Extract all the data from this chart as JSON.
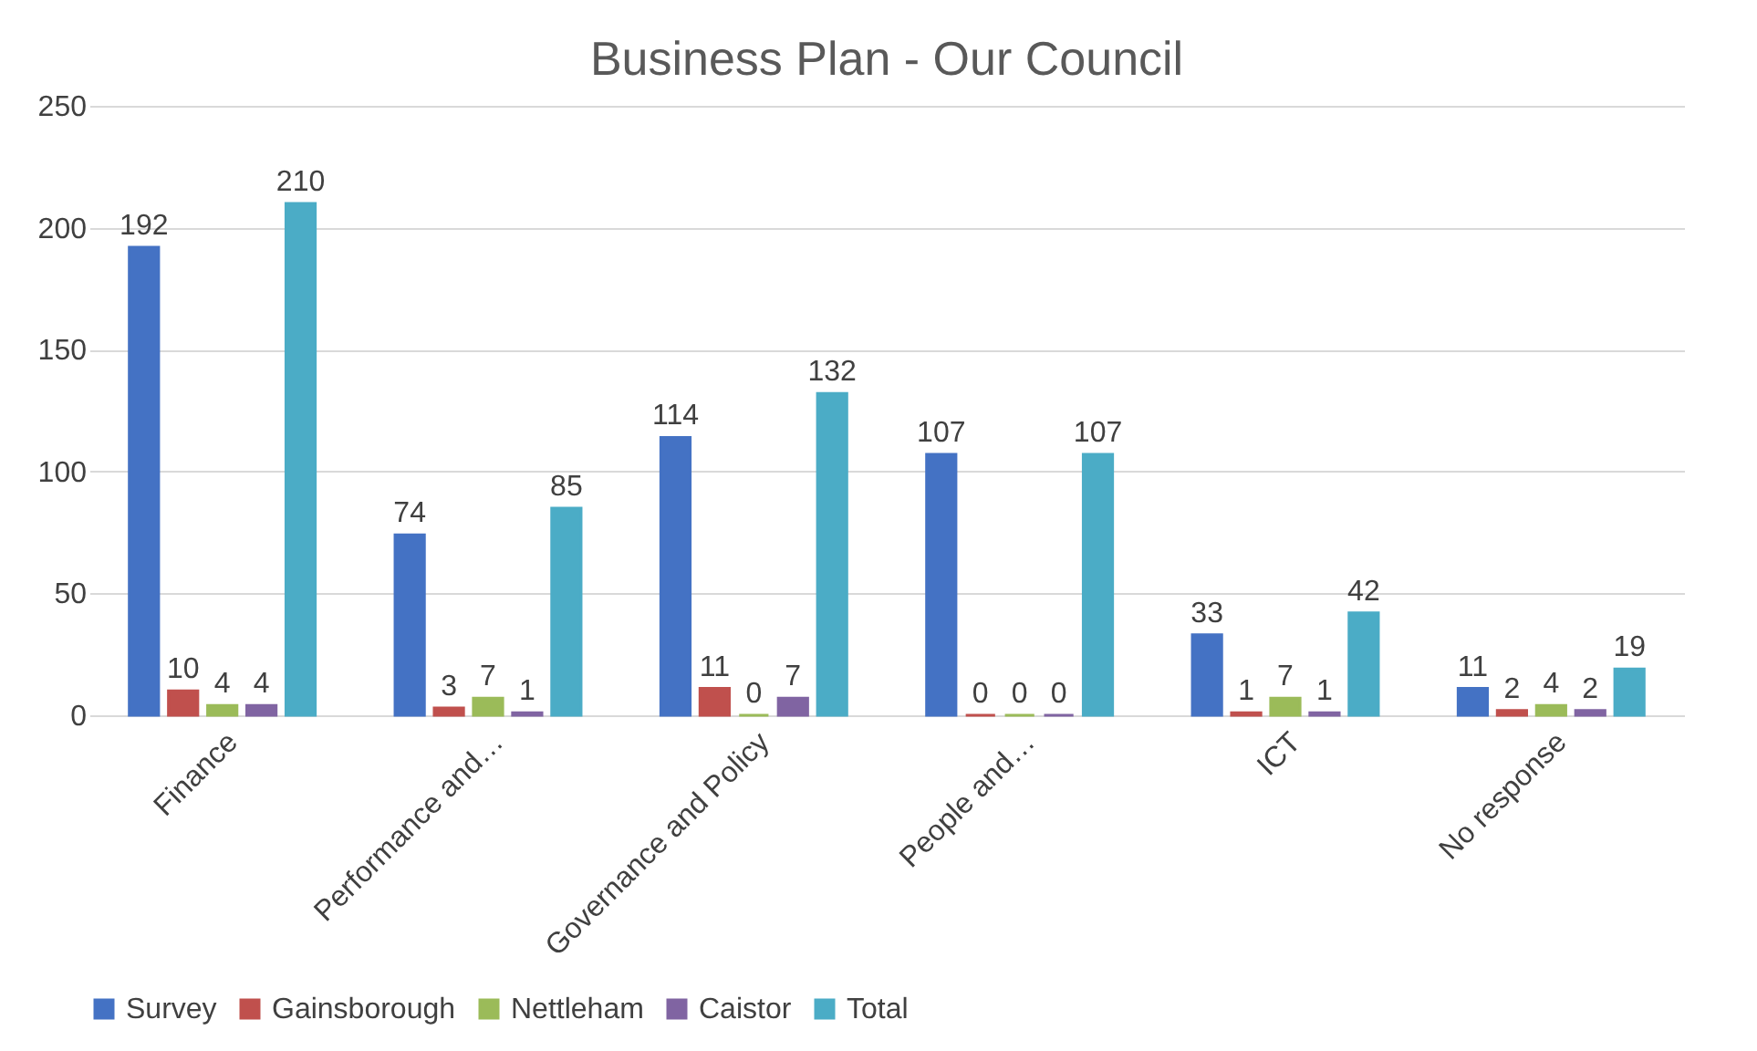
{
  "chart_data": {
    "type": "bar",
    "title": "Business Plan - Our Council",
    "categories": [
      "Finance",
      "Performance and…",
      "Governance and Policy",
      "People and…",
      "ICT",
      "No response"
    ],
    "series": [
      {
        "name": "Survey",
        "color": "#4472c4",
        "values": [
          192,
          74,
          114,
          107,
          33,
          11
        ]
      },
      {
        "name": "Gainsborough",
        "color": "#c0504d",
        "values": [
          10,
          3,
          11,
          0,
          1,
          2
        ]
      },
      {
        "name": "Nettleham",
        "color": "#9bbb59",
        "values": [
          4,
          7,
          0,
          0,
          7,
          4
        ]
      },
      {
        "name": "Caistor",
        "color": "#8064a2",
        "values": [
          4,
          1,
          7,
          0,
          1,
          2
        ]
      },
      {
        "name": "Total",
        "color": "#4bacc6",
        "values": [
          210,
          85,
          132,
          107,
          42,
          19
        ]
      }
    ],
    "ylim": [
      0,
      250
    ],
    "yticks": [
      0,
      50,
      100,
      150,
      200,
      250
    ],
    "grid": "y",
    "legend": "bottom",
    "data_labels": true
  }
}
